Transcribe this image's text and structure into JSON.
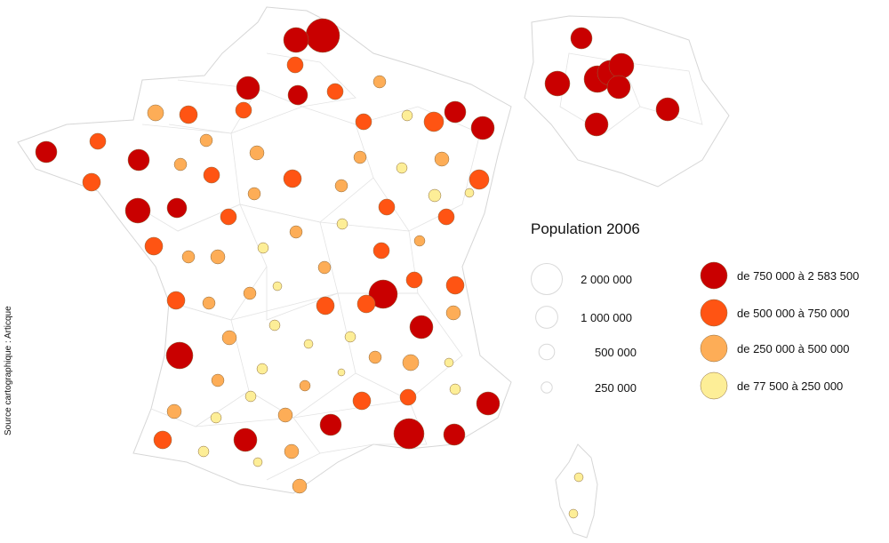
{
  "source": "Source cartographique : Articque",
  "legend": {
    "title": "Population 2006",
    "sizes": [
      {
        "label": "2 000 000",
        "value": 2000000
      },
      {
        "label": "1 000 000",
        "value": 1000000
      },
      {
        "label": "500 000",
        "value": 500000
      },
      {
        "label": "250 000",
        "value": 250000
      }
    ],
    "classes": [
      {
        "label": "de 750 000 à 2 583 500",
        "color": "#c90000"
      },
      {
        "label": "de 500 000 à 750 000",
        "color": "#ff5413"
      },
      {
        "label": "de 250 000 à 500 000",
        "color": "#fdad57"
      },
      {
        "label": "de 77 500 à 250 000",
        "color": "#fdee97"
      }
    ]
  }
}
